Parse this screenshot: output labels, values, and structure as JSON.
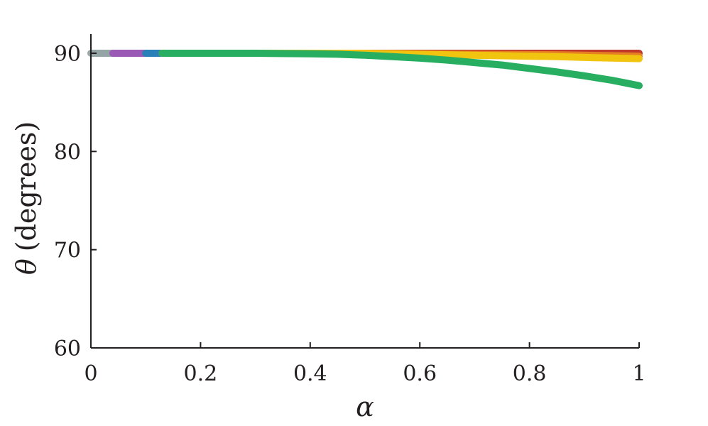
{
  "chart_data": {
    "type": "line",
    "title": "",
    "xlabel_symbol": "α",
    "ylabel_symbol": "θ",
    "ylabel_text": "(degrees)",
    "xlim": [
      0,
      1
    ],
    "ylim": [
      60,
      92
    ],
    "xticks": [
      0,
      0.2,
      0.4,
      0.6,
      0.8,
      1
    ],
    "xtick_labels": [
      "0",
      "0.2",
      "0.4",
      "0.6",
      "0.8",
      "1"
    ],
    "yticks": [
      60,
      70,
      80,
      90
    ],
    "ytick_labels": [
      "60",
      "70",
      "80",
      "90"
    ],
    "grid": false,
    "legend": "none",
    "series": [
      {
        "color": "#95a5a6",
        "x": [
          0.0,
          0.04
        ],
        "y": [
          90.0,
          90.0
        ]
      },
      {
        "color": "#9b59b6",
        "x": [
          0.04,
          0.1
        ],
        "y": [
          90.0,
          90.0
        ]
      },
      {
        "color": "#2980b9",
        "x": [
          0.1,
          0.13
        ],
        "y": [
          90.0,
          90.0
        ]
      },
      {
        "color": "#c0392b",
        "x": [
          0.13,
          0.3,
          0.5,
          0.7,
          0.85,
          1.0
        ],
        "y": [
          90.0,
          90.0,
          90.0,
          90.0,
          90.0,
          90.0
        ]
      },
      {
        "color": "#e67e22",
        "x": [
          0.13,
          0.3,
          0.5,
          0.7,
          0.85,
          1.0
        ],
        "y": [
          90.0,
          90.0,
          90.0,
          89.9,
          89.85,
          89.7
        ]
      },
      {
        "color": "#f1c40f",
        "x": [
          0.13,
          0.3,
          0.45,
          0.55,
          0.65,
          0.75,
          0.85,
          0.92,
          1.0
        ],
        "y": [
          90.0,
          90.0,
          90.0,
          89.95,
          89.85,
          89.75,
          89.65,
          89.55,
          89.45
        ]
      },
      {
        "color": "#27ae60",
        "x": [
          0.13,
          0.3,
          0.4,
          0.45,
          0.5,
          0.55,
          0.6,
          0.65,
          0.7,
          0.75,
          0.8,
          0.85,
          0.9,
          0.95,
          1.0
        ],
        "y": [
          90.0,
          90.0,
          89.95,
          89.9,
          89.8,
          89.65,
          89.5,
          89.3,
          89.05,
          88.8,
          88.45,
          88.1,
          87.7,
          87.25,
          86.7
        ]
      }
    ]
  }
}
